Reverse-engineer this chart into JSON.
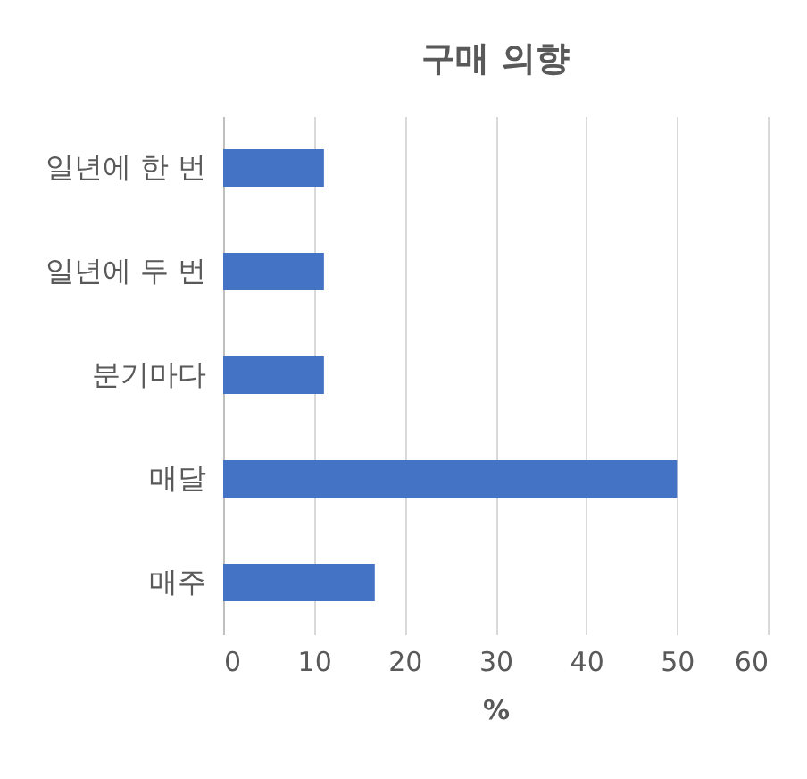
{
  "chart_data": {
    "type": "bar",
    "orientation": "horizontal",
    "title": "구매 의향",
    "xlabel": "%",
    "categories": [
      "일년에 한 번",
      "일년에 두 번",
      "분기마다",
      "매달",
      "매주"
    ],
    "values": [
      11.1,
      11.1,
      11.1,
      50,
      16.7
    ],
    "color": "#4472c4",
    "xlim": [
      0,
      60
    ],
    "xticks": [
      0,
      10,
      20,
      30,
      40,
      50,
      60
    ],
    "grid": "x"
  }
}
